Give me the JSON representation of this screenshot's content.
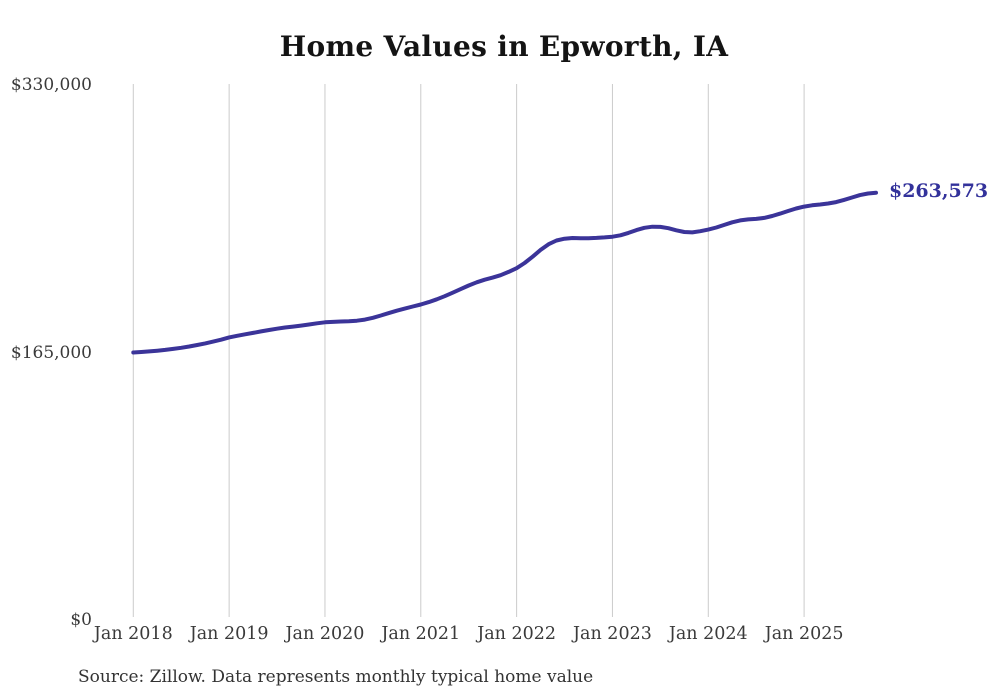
{
  "chart": {
    "title": "Home Values in Epworth, IA",
    "source_note": "Source: Zillow. Data represents monthly typical home value",
    "current_value_label": "$263,573",
    "line_color": "#3b3499",
    "end_label_color": "#33329b",
    "grid_color": "#cbcbcb"
  },
  "chart_data": {
    "type": "line",
    "title": "Home Values in Epworth, IA",
    "xlabel": "",
    "ylabel": "",
    "ylim": [
      0,
      330000
    ],
    "grid": "vertical-only",
    "legend": "none",
    "x_unit": "month",
    "x_start": "Jan 2018",
    "x_end": "Oct 2025",
    "x_tick_labels": [
      "Jan 2018",
      "Jan 2019",
      "Jan 2020",
      "Jan 2021",
      "Jan 2022",
      "Jan 2023",
      "Jan 2024",
      "Jan 2025"
    ],
    "y_ticks": [
      {
        "label": "$330,000",
        "value": 330000
      },
      {
        "label": "$165,000",
        "value": 165000
      },
      {
        "label": "$0",
        "value": 0
      }
    ],
    "end_annotation": {
      "text": "$263,573",
      "value": 263573
    },
    "series": [
      {
        "name": "Monthly typical home value",
        "color": "#3b3499",
        "values": [
          165000,
          165300,
          165700,
          166100,
          166600,
          167200,
          167900,
          168700,
          169600,
          170600,
          171700,
          172900,
          174300,
          175300,
          176200,
          177100,
          178000,
          178900,
          179700,
          180400,
          181000,
          181600,
          182300,
          183000,
          183600,
          183900,
          184100,
          184300,
          184600,
          185300,
          186400,
          187800,
          189300,
          190800,
          192100,
          193400,
          194600,
          196100,
          197800,
          199700,
          201900,
          204100,
          206300,
          208300,
          209900,
          211200,
          212700,
          214700,
          217000,
          220200,
          224100,
          228300,
          231800,
          234100,
          235200,
          235600,
          235500,
          235500,
          235700,
          236000,
          236400,
          237300,
          238800,
          240500,
          241900,
          242600,
          242500,
          241700,
          240400,
          239300,
          239100,
          239800,
          240800,
          242100,
          243700,
          245300,
          246500,
          247100,
          247400,
          248000,
          249200,
          250700,
          252300,
          253800,
          255000,
          255800,
          256300,
          256900,
          257800,
          259100,
          260600,
          262100,
          263100,
          263573
        ]
      }
    ]
  }
}
